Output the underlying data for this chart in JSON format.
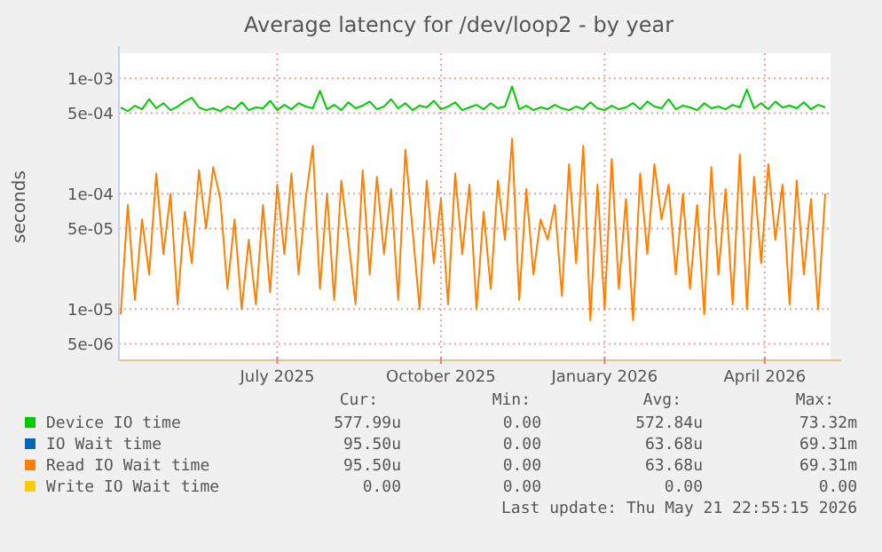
{
  "chart_data": {
    "type": "line",
    "title": "Average latency for /dev/loop2 - by year",
    "ylabel": "seconds",
    "log": "y",
    "grid": true,
    "legend": "bottom",
    "line_style": "solid",
    "marker": "none",
    "xlim": [
      "2025-04-17",
      "2026-05-22"
    ],
    "xticks": [
      {
        "value": "2025-07-15",
        "label": "July 2025"
      },
      {
        "value": "2025-10-15",
        "label": "October 2025"
      },
      {
        "value": "2026-01-15",
        "label": "January 2026"
      },
      {
        "value": "2026-04-15",
        "label": "April 2026"
      }
    ],
    "ylim": [
      3.6e-06,
      0.00165
    ],
    "yticks": [
      {
        "value": 0.001,
        "label": "1e-03"
      },
      {
        "value": 0.0005,
        "label": "5e-04"
      },
      {
        "value": 0.0001,
        "label": "1e-04"
      },
      {
        "value": 5e-05,
        "label": "5e-05"
      },
      {
        "value": 1e-05,
        "label": "1e-05"
      },
      {
        "value": 5e-06,
        "label": "5e-06"
      }
    ],
    "x": [
      "2025-04-18",
      "2025-04-22",
      "2025-04-26",
      "2025-04-30",
      "2025-05-04",
      "2025-05-08",
      "2025-05-12",
      "2025-05-16",
      "2025-05-20",
      "2025-05-24",
      "2025-05-28",
      "2025-06-01",
      "2025-06-05",
      "2025-06-09",
      "2025-06-13",
      "2025-06-17",
      "2025-06-21",
      "2025-06-25",
      "2025-06-29",
      "2025-07-03",
      "2025-07-07",
      "2025-07-11",
      "2025-07-15",
      "2025-07-19",
      "2025-07-23",
      "2025-07-27",
      "2025-07-31",
      "2025-08-04",
      "2025-08-08",
      "2025-08-12",
      "2025-08-16",
      "2025-08-20",
      "2025-08-24",
      "2025-08-28",
      "2025-09-01",
      "2025-09-05",
      "2025-09-09",
      "2025-09-13",
      "2025-09-17",
      "2025-09-21",
      "2025-09-25",
      "2025-09-29",
      "2025-10-03",
      "2025-10-07",
      "2025-10-11",
      "2025-10-15",
      "2025-10-19",
      "2025-10-23",
      "2025-10-27",
      "2025-10-31",
      "2025-11-04",
      "2025-11-08",
      "2025-11-12",
      "2025-11-16",
      "2025-11-20",
      "2025-11-24",
      "2025-11-28",
      "2025-12-02",
      "2025-12-06",
      "2025-12-10",
      "2025-12-14",
      "2025-12-18",
      "2025-12-22",
      "2025-12-26",
      "2025-12-30",
      "2026-01-03",
      "2026-01-07",
      "2026-01-11",
      "2026-01-15",
      "2026-01-19",
      "2026-01-23",
      "2026-01-27",
      "2026-01-31",
      "2026-02-04",
      "2026-02-08",
      "2026-02-12",
      "2026-02-16",
      "2026-02-20",
      "2026-02-24",
      "2026-02-28",
      "2026-03-04",
      "2026-03-08",
      "2026-03-12",
      "2026-03-16",
      "2026-03-20",
      "2026-03-24",
      "2026-03-28",
      "2026-04-01",
      "2026-04-05",
      "2026-04-09",
      "2026-04-13",
      "2026-04-17",
      "2026-04-21",
      "2026-04-25",
      "2026-04-29",
      "2026-05-03",
      "2026-05-07",
      "2026-05-11",
      "2026-05-15",
      "2026-05-19"
    ],
    "series": [
      {
        "name": "Device IO time",
        "color": "#00cc00",
        "values": [
          0.00056,
          0.00052,
          0.00058,
          0.00054,
          0.00066,
          0.00055,
          0.00061,
          0.00053,
          0.00057,
          0.00063,
          0.00068,
          0.00056,
          0.00053,
          0.00055,
          0.00052,
          0.00057,
          0.00054,
          0.00062,
          0.00053,
          0.00056,
          0.00055,
          0.00064,
          0.00053,
          0.00059,
          0.00054,
          0.00061,
          0.00057,
          0.00055,
          0.00078,
          0.00054,
          0.00059,
          0.00053,
          0.00062,
          0.00055,
          0.00058,
          0.00063,
          0.00054,
          0.00057,
          0.00066,
          0.00055,
          0.00061,
          0.00053,
          0.00058,
          0.00056,
          0.00064,
          0.00054,
          0.00057,
          0.00062,
          0.00053,
          0.00056,
          0.00059,
          0.00054,
          0.00061,
          0.00055,
          0.00057,
          0.00085,
          0.00054,
          0.00058,
          0.00053,
          0.00056,
          0.00054,
          0.00059,
          0.00055,
          0.00053,
          0.00057,
          0.00054,
          0.00062,
          0.00055,
          0.00053,
          0.00058,
          0.00054,
          0.00056,
          0.00061,
          0.00054,
          0.00063,
          0.00057,
          0.00055,
          0.00066,
          0.00054,
          0.00058,
          0.00056,
          0.00053,
          0.00061,
          0.00055,
          0.00057,
          0.00054,
          0.00059,
          0.00056,
          0.0008,
          0.00055,
          0.00061,
          0.00054,
          0.00063,
          0.00056,
          0.00058,
          0.00055,
          0.00062,
          0.00054,
          0.00059,
          0.00056
        ]
      },
      {
        "name": "IO Wait time",
        "color": "#0066b3",
        "values": [
          null,
          null,
          null,
          null,
          null,
          null,
          null,
          null,
          null,
          null,
          null,
          null,
          null,
          null,
          null,
          null,
          null,
          null,
          null,
          null,
          null,
          null,
          null,
          null,
          null,
          null,
          null,
          null,
          null,
          null,
          null,
          null,
          null,
          null,
          null,
          null,
          null,
          null,
          null,
          null,
          null,
          null,
          null,
          null,
          null,
          null,
          null,
          null,
          null,
          null,
          null,
          null,
          null,
          null,
          null,
          null,
          null,
          null,
          null,
          null,
          null,
          null,
          null,
          null,
          null,
          null,
          null,
          null,
          null,
          null,
          null,
          null,
          null,
          null,
          null,
          null,
          null,
          null,
          null,
          null,
          null,
          null,
          null,
          null,
          null,
          null,
          null,
          null,
          null,
          null,
          null,
          null,
          null,
          null,
          null,
          null,
          null,
          null,
          null,
          null
        ]
      },
      {
        "name": "Read IO Wait time",
        "color": "#ff8000",
        "values": [
          9e-06,
          8e-05,
          1.2e-05,
          6e-05,
          2e-05,
          0.00015,
          3e-05,
          0.0001,
          1.1e-05,
          7e-05,
          2.5e-05,
          0.00016,
          5e-05,
          0.00017,
          9e-05,
          1.5e-05,
          6e-05,
          1e-05,
          4e-05,
          1.1e-05,
          8e-05,
          1.4e-05,
          0.00012,
          3e-05,
          0.00015,
          2e-05,
          9e-05,
          0.00026,
          1.5e-05,
          0.0001,
          1.2e-05,
          0.00013,
          4e-05,
          1.1e-05,
          0.00016,
          2e-05,
          0.00014,
          3e-05,
          0.00011,
          1.2e-05,
          0.00024,
          5e-05,
          1e-05,
          0.00013,
          2.5e-05,
          9e-05,
          1.1e-05,
          0.00015,
          3e-05,
          0.00012,
          1e-05,
          7e-05,
          1.5e-05,
          0.00013,
          4e-05,
          0.0003,
          1.2e-05,
          0.00011,
          2e-05,
          6e-05,
          4e-05,
          8e-05,
          1.3e-05,
          0.00018,
          2.5e-05,
          0.00026,
          8e-06,
          0.00012,
          1e-05,
          0.0002,
          1.5e-05,
          9e-05,
          8e-06,
          0.00015,
          3e-05,
          0.00018,
          6e-05,
          0.00012,
          2e-05,
          0.0001,
          1.5e-05,
          8e-05,
          9e-06,
          0.00017,
          2e-05,
          0.00011,
          1.1e-05,
          0.00022,
          1e-05,
          0.00014,
          2.5e-05,
          0.00018,
          4e-05,
          0.00012,
          1.1e-05,
          0.00013,
          2e-05,
          9e-05,
          1e-05,
          0.0001
        ]
      },
      {
        "name": "Write IO Wait time",
        "color": "#ffcc00",
        "values": [
          null,
          null,
          null,
          null,
          null,
          null,
          null,
          null,
          null,
          null,
          null,
          null,
          null,
          null,
          null,
          null,
          null,
          null,
          null,
          null,
          null,
          null,
          null,
          null,
          null,
          null,
          null,
          null,
          null,
          null,
          null,
          null,
          null,
          null,
          null,
          null,
          null,
          null,
          null,
          null,
          null,
          null,
          null,
          null,
          null,
          null,
          null,
          null,
          null,
          null,
          null,
          null,
          null,
          null,
          null,
          null,
          null,
          null,
          null,
          null,
          null,
          null,
          null,
          null,
          null,
          null,
          null,
          null,
          null,
          null,
          null,
          null,
          null,
          null,
          null,
          null,
          null,
          null,
          null,
          null,
          null,
          null,
          null,
          null,
          null,
          null,
          null,
          null,
          null,
          null,
          null,
          null,
          null,
          null,
          null,
          null,
          null,
          null,
          null,
          null
        ]
      }
    ],
    "annotations": [
      "Cur:",
      "Min:",
      "Avg:",
      "Max:",
      "577.99u",
      "0.00",
      "572.84u",
      "73.32m",
      "95.50u",
      "0.00",
      "63.68u",
      "69.31m",
      "95.50u",
      "0.00",
      "63.68u",
      "69.31m",
      "0.00",
      "0.00",
      "0.00",
      "0.00",
      "Last update: Thu May 21 22:55:15 2026"
    ]
  }
}
